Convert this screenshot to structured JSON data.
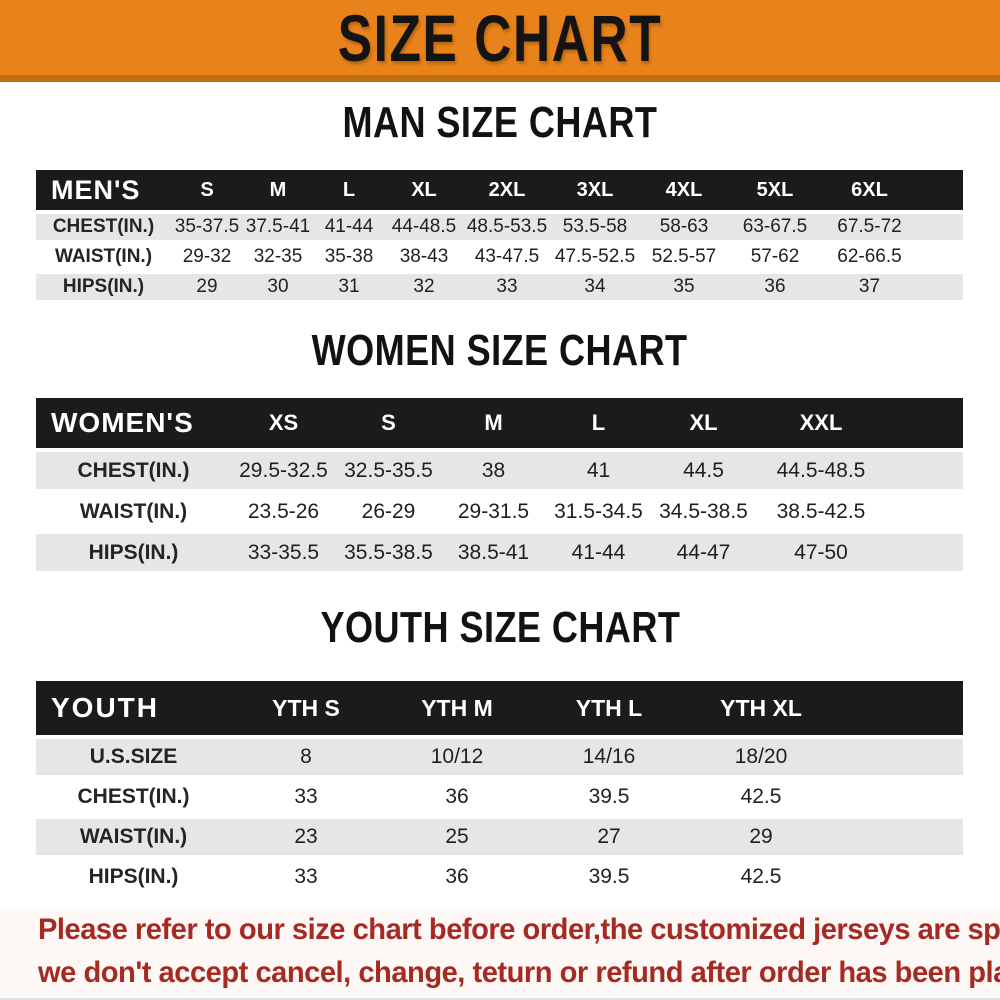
{
  "theme": {
    "banner_orange": "#E8821A",
    "banner_edge": "#C06C10",
    "bar_black": "#1B1B1B",
    "row_gray": "#E6E6E6",
    "footer_red": "#A62A24",
    "title_black": "#141414"
  },
  "banner": {
    "title": "SIZE CHART"
  },
  "sections": {
    "men": {
      "title": "MAN SIZE CHART",
      "table": {
        "corner_label": "MEN'S",
        "columns": [
          "S",
          "M",
          "L",
          "XL",
          "2XL",
          "3XL",
          "4XL",
          "5XL",
          "6XL"
        ],
        "rows": [
          {
            "label": "CHEST(IN.)",
            "values": [
              "35-37.5",
              "37.5-41",
              "41-44",
              "44-48.5",
              "48.5-53.5",
              "53.5-58",
              "58-63",
              "63-67.5",
              "67.5-72"
            ]
          },
          {
            "label": "WAIST(IN.)",
            "values": [
              "29-32",
              "32-35",
              "35-38",
              "38-43",
              "43-47.5",
              "47.5-52.5",
              "52.5-57",
              "57-62",
              "62-66.5"
            ]
          },
          {
            "label": "HIPS(IN.)",
            "values": [
              "29",
              "30",
              "31",
              "32",
              "33",
              "34",
              "35",
              "36",
              "37"
            ]
          }
        ]
      }
    },
    "women": {
      "title": "WOMEN SIZE CHART",
      "table": {
        "corner_label": "WOMEN'S",
        "columns": [
          "XS",
          "S",
          "M",
          "L",
          "XL",
          "XXL"
        ],
        "rows": [
          {
            "label": "CHEST(IN.)",
            "values": [
              "29.5-32.5",
              "32.5-35.5",
              "38",
              "41",
              "44.5",
              "44.5-48.5"
            ]
          },
          {
            "label": "WAIST(IN.)",
            "values": [
              "23.5-26",
              "26-29",
              "29-31.5",
              "31.5-34.5",
              "34.5-38.5",
              "38.5-42.5"
            ]
          },
          {
            "label": "HIPS(IN.)",
            "values": [
              "33-35.5",
              "35.5-38.5",
              "38.5-41",
              "41-44",
              "44-47",
              "47-50"
            ]
          }
        ]
      }
    },
    "youth": {
      "title": "YOUTH SIZE CHART",
      "table": {
        "corner_label": "YOUTH",
        "columns": [
          "YTH S",
          "YTH M",
          "YTH L",
          "YTH XL"
        ],
        "rows": [
          {
            "label": "U.S.SIZE",
            "values": [
              "8",
              "10/12",
              "14/16",
              "18/20"
            ]
          },
          {
            "label": "CHEST(IN.)",
            "values": [
              "33",
              "36",
              "39.5",
              "42.5"
            ]
          },
          {
            "label": "WAIST(IN.)",
            "values": [
              "23",
              "25",
              "27",
              "29"
            ]
          },
          {
            "label": "HIPS(IN.)",
            "values": [
              "33",
              "36",
              "39.5",
              "42.5"
            ]
          }
        ]
      }
    }
  },
  "footer": {
    "line1": "Please refer to our size chart before order,the customized jerseys are special products,",
    "line2": "we don't accept cancel, change, teturn or refund after order has been placed!"
  }
}
